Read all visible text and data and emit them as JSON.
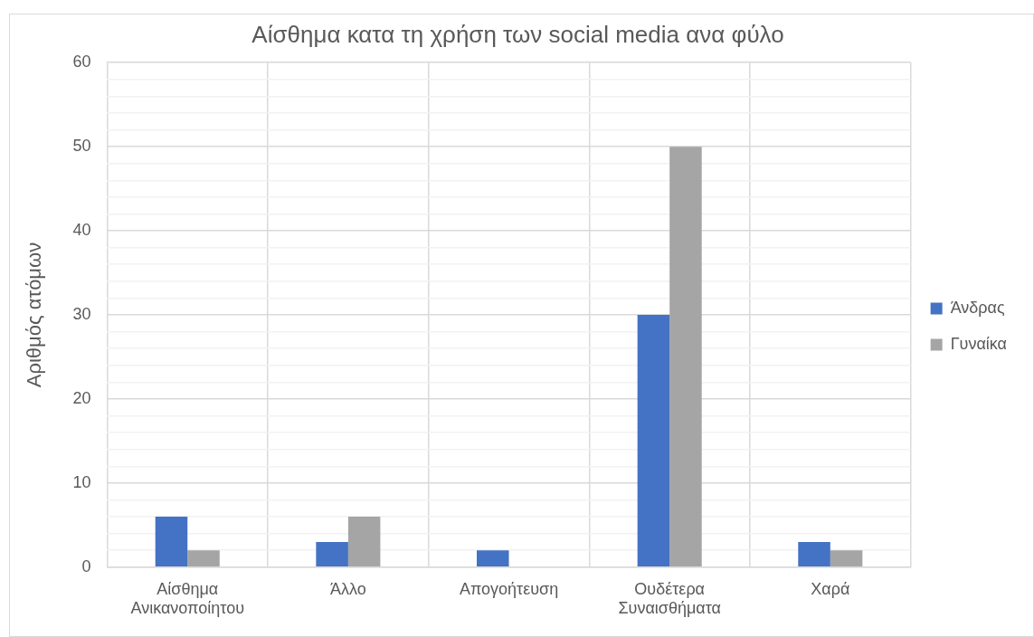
{
  "chart_data": {
    "type": "bar",
    "title": "Αίσθημα κατα τη χρήση των social media ανα φύλο",
    "ylabel": "Αριθμός ατόμων",
    "categories": [
      "Αίσθημα Ανικανοποίητου",
      "Άλλο",
      "Απογοήτευση",
      "Ουδέτερα Συναισθήματα",
      "Χαρά"
    ],
    "series": [
      {
        "name": "Άνδρας",
        "color": "#4472c4",
        "values": [
          6,
          3,
          2,
          30,
          3
        ]
      },
      {
        "name": "Γυναίκα",
        "color": "#a5a5a5",
        "values": [
          2,
          6,
          0,
          50,
          2
        ]
      }
    ],
    "ylim": [
      0,
      60
    ],
    "yticks": [
      0,
      {
        "value": 2,
        "label": null
      },
      {
        "value": 4,
        "label": null
      },
      {
        "value": 6,
        "label": null
      },
      {
        "value": 8,
        "label": null
      },
      10,
      {
        "value": 12,
        "label": null
      },
      {
        "value": 14,
        "label": null
      },
      {
        "value": 16,
        "label": null
      },
      {
        "value": 18,
        "label": null
      },
      20,
      {
        "value": 22,
        "label": null
      },
      {
        "value": 24,
        "label": null
      },
      {
        "value": 26,
        "label": null
      },
      {
        "value": 28,
        "label": null
      },
      30,
      {
        "value": 32,
        "label": null
      },
      {
        "value": 34,
        "label": null
      },
      {
        "value": 36,
        "label": null
      },
      {
        "value": 38,
        "label": null
      },
      40,
      {
        "value": 42,
        "label": null
      },
      {
        "value": 44,
        "label": null
      },
      {
        "value": 46,
        "label": null
      },
      {
        "value": 48,
        "label": null
      },
      50,
      {
        "value": 52,
        "label": null
      },
      {
        "value": 54,
        "label": null
      },
      {
        "value": 56,
        "label": null
      },
      {
        "value": 58,
        "label": null
      },
      60
    ],
    "grid": true,
    "legend": "right"
  }
}
